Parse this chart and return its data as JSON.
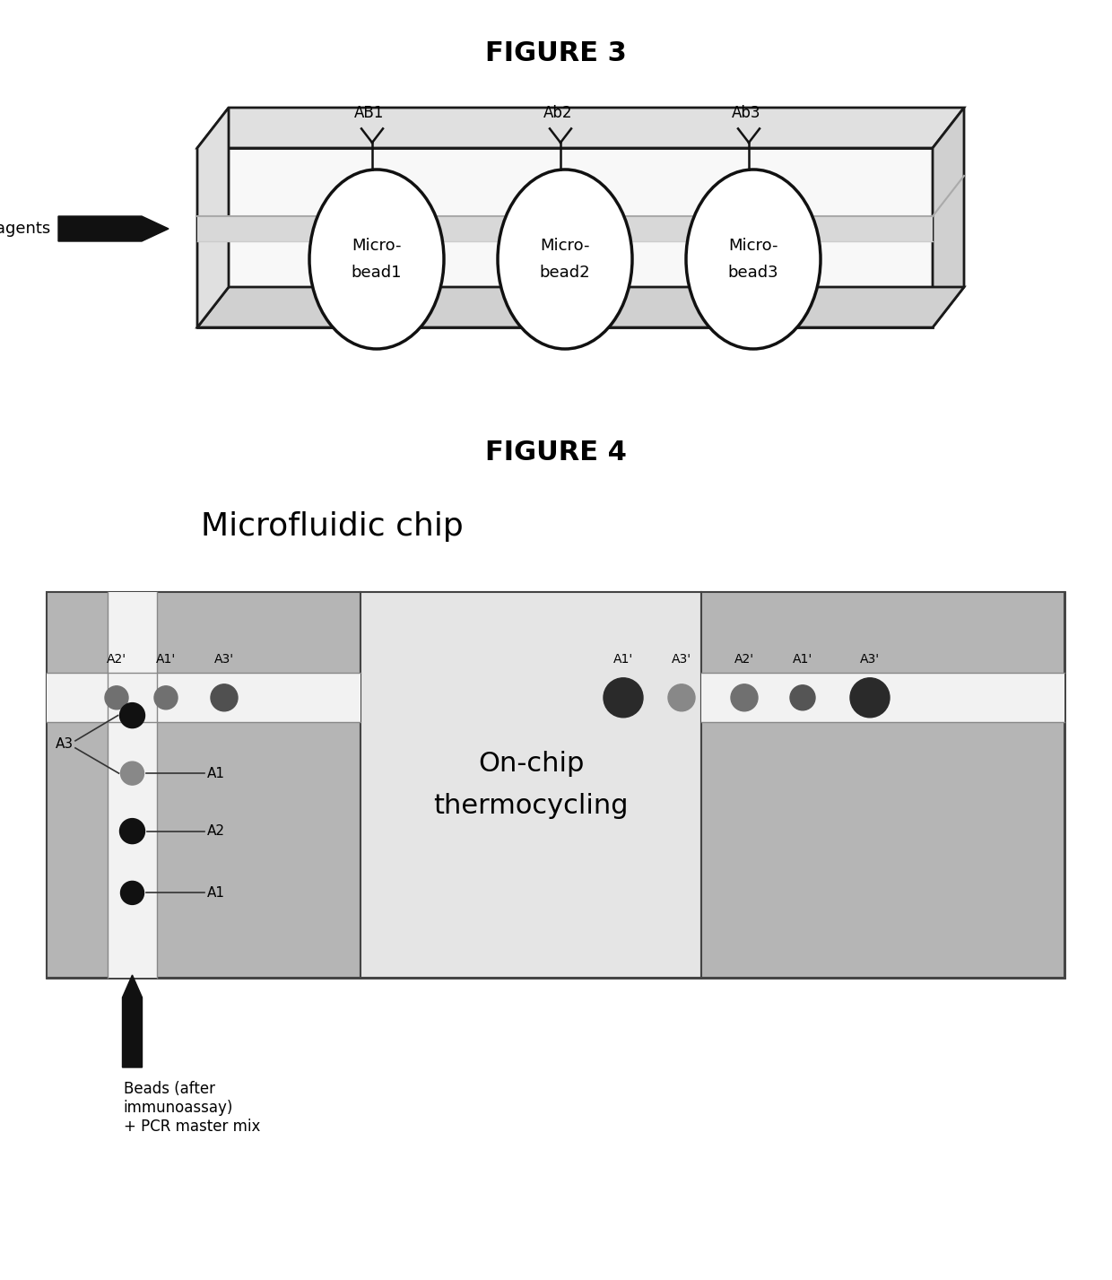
{
  "fig3_title": "FIGURE 3",
  "fig4_title": "FIGURE 4",
  "fig3_reagents_label": "Reagents",
  "fig3_beads": [
    "Micro-\nbead1",
    "Micro-\nbead2",
    "Micro-\nbead3"
  ],
  "fig3_ab_labels": [
    "AB1",
    "Ab2",
    "Ab3"
  ],
  "fig4_chip_label": "Microfluidic chip",
  "fig4_thermocycling_label": "On-chip\nthermocycling",
  "fig4_beads_label": "Beads (after\nimmunoassay)\n+ PCR master mix",
  "fig4_top_left_labels": [
    "A2'",
    "A1'",
    "A3'"
  ],
  "fig4_top_right_labels": [
    "A1'",
    "A3'",
    "A2'",
    "A1'",
    "A3'"
  ],
  "fig4_side_labels": [
    "A3",
    "A1",
    "A2",
    "A1"
  ],
  "background_color": "#ffffff",
  "fig3_box_face": "#f8f8f8",
  "fig3_box_top": "#e0e0e0",
  "fig3_box_side": "#d0d0d0",
  "fig3_box_edge": "#1a1a1a",
  "chip_gray_dark": "#b5b5b5",
  "chip_gray_mid": "#d0d0d0",
  "chip_gray_light": "#e8e8e8",
  "chip_channel_white": "#f2f2f2"
}
